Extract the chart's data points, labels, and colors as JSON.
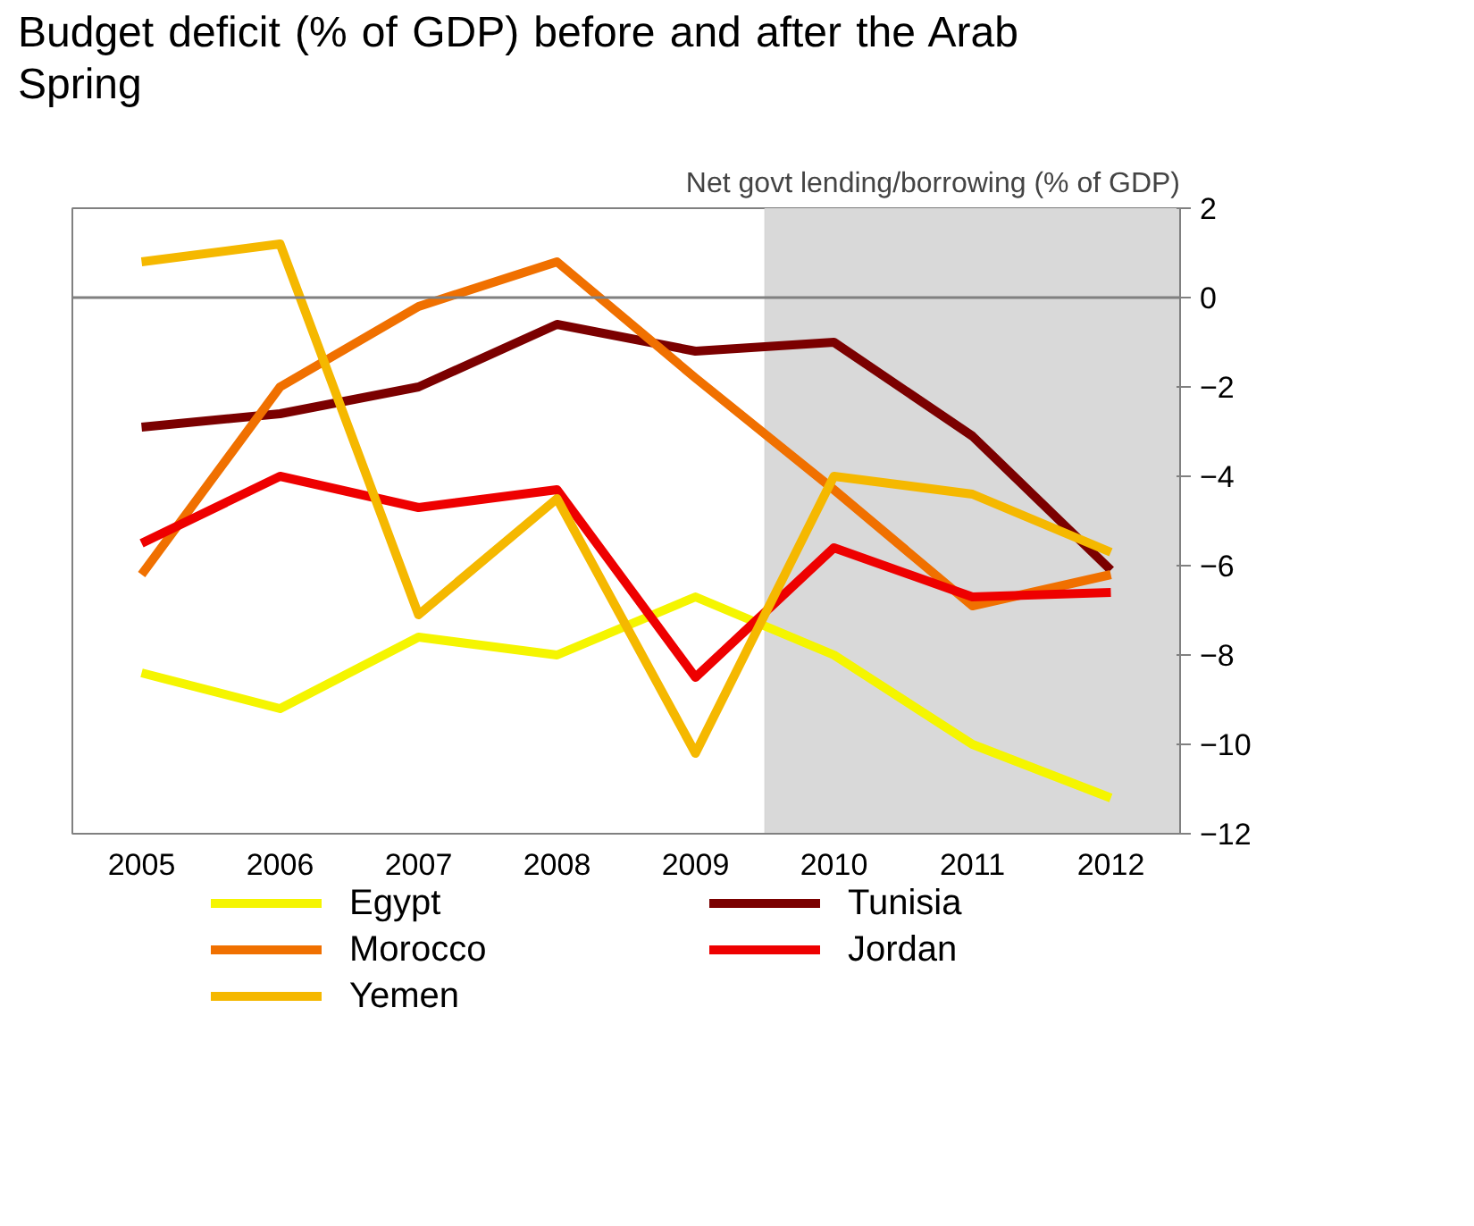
{
  "chart_data": {
    "type": "line",
    "title": "Budget deficit (% of GDP) before and after the Arab Spring",
    "ylabel": "Net govt lending/borrowing (% of GDP)",
    "categories": [
      "2005",
      "2006",
      "2007",
      "2008",
      "2009",
      "2010",
      "2011",
      "2012"
    ],
    "ylim": [
      -12,
      2
    ],
    "yticks": [
      -12,
      -10,
      -8,
      -6,
      -4,
      -2,
      0,
      2
    ],
    "series": [
      {
        "name": "Egypt",
        "color": "#f5f500",
        "values": [
          -8.4,
          -9.2,
          -7.6,
          -8.0,
          -6.7,
          -8.0,
          -10.0,
          -11.2
        ]
      },
      {
        "name": "Tunisia",
        "color": "#7b0000",
        "values": [
          -2.9,
          -2.6,
          -2.0,
          -0.6,
          -1.2,
          -1.0,
          -3.1,
          -6.1
        ]
      },
      {
        "name": "Morocco",
        "color": "#f07000",
        "values": [
          -6.2,
          -2.0,
          -0.2,
          0.8,
          -1.8,
          -4.3,
          -6.9,
          -6.2
        ]
      },
      {
        "name": "Jordan",
        "color": "#ee0000",
        "values": [
          -5.5,
          -4.0,
          -4.7,
          -4.3,
          -8.5,
          -5.6,
          -6.7,
          -6.6
        ]
      },
      {
        "name": "Yemen",
        "color": "#f5b800",
        "values": [
          0.8,
          1.2,
          -7.1,
          -4.5,
          -10.2,
          -4.0,
          -4.4,
          -5.7
        ]
      }
    ],
    "ref_lines": [
      {
        "axis": "y",
        "value": 0,
        "color": "#808080"
      }
    ],
    "bands": [
      {
        "axis": "x",
        "from": "2010",
        "to": "2012",
        "color": "#d9d9d9"
      }
    ],
    "grid": false,
    "legend": "bottom",
    "line_style": "solid",
    "marker": "none"
  }
}
